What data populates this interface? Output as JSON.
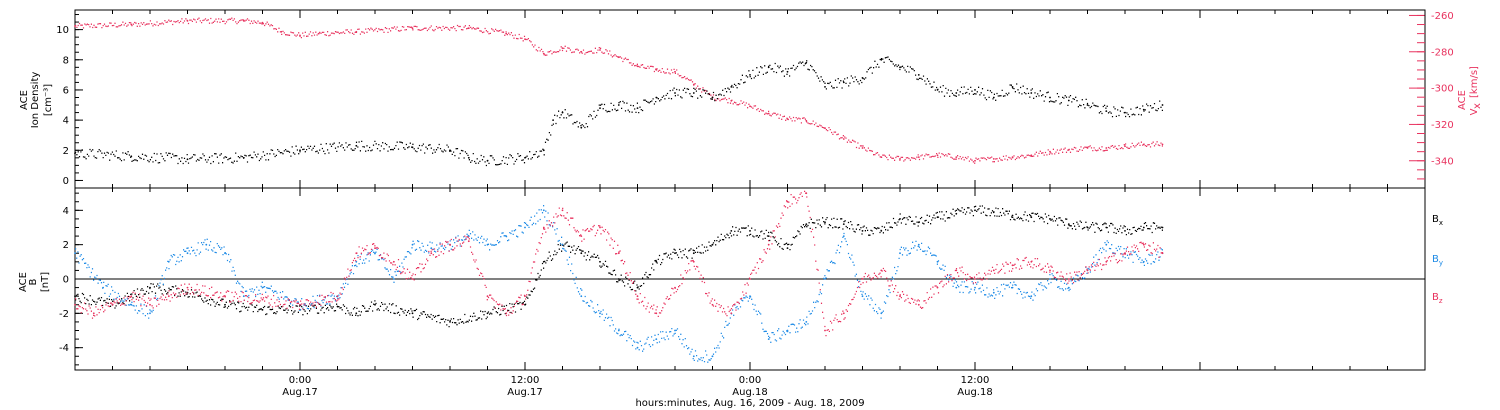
{
  "colors": {
    "black": "#000000",
    "pink": "#e8325e",
    "blue": "#1f8be6"
  },
  "chart_data": [
    {
      "type": "scatter",
      "panel": "top",
      "ylabel_left": [
        "ACE",
        "Ion Density",
        "[cm⁻³]"
      ],
      "ylabel_right": [
        "ACE",
        "V",
        "x",
        "[km/s]"
      ],
      "xlim_hours": [
        0,
        72
      ],
      "ylim_left": [
        -0.5,
        11.3
      ],
      "ylim_right": [
        -355,
        -257
      ],
      "yticks_left": [
        "0",
        "2",
        "4",
        "6",
        "8",
        "10"
      ],
      "yticks_right": [
        "-260",
        "-280",
        "-300",
        "-320",
        "-340"
      ],
      "series": [
        {
          "axis": "left",
          "color": "#000000",
          "points": [
            [
              0,
              1.8
            ],
            [
              3,
              1.6
            ],
            [
              6,
              1.4
            ],
            [
              9,
              1.5
            ],
            [
              12,
              2.0
            ],
            [
              15,
              2.3
            ],
            [
              18,
              2.2
            ],
            [
              20,
              2.0
            ],
            [
              21,
              1.5
            ],
            [
              22,
              1.3
            ],
            [
              24,
              1.5
            ],
            [
              25,
              2.0
            ],
            [
              25.5,
              4.0
            ],
            [
              26,
              4.5
            ],
            [
              27,
              3.5
            ],
            [
              28,
              4.8
            ],
            [
              29,
              5.0
            ],
            [
              30,
              4.8
            ],
            [
              31,
              5.5
            ],
            [
              32,
              5.8
            ],
            [
              33,
              5.8
            ],
            [
              34,
              5.5
            ],
            [
              35,
              6.2
            ],
            [
              36,
              7.0
            ],
            [
              37,
              7.5
            ],
            [
              38,
              7.2
            ],
            [
              39,
              7.8
            ],
            [
              40,
              6.2
            ],
            [
              41,
              6.5
            ],
            [
              42,
              6.8
            ],
            [
              43,
              8.0
            ],
            [
              44,
              7.5
            ],
            [
              45,
              7.0
            ],
            [
              46,
              6.0
            ],
            [
              47,
              5.8
            ],
            [
              48,
              6.0
            ],
            [
              49,
              5.5
            ],
            [
              50,
              6.2
            ],
            [
              51,
              5.8
            ],
            [
              52,
              5.5
            ],
            [
              53,
              5.3
            ],
            [
              54,
              5.0
            ],
            [
              55,
              4.6
            ],
            [
              56,
              4.5
            ],
            [
              57,
              4.7
            ],
            [
              58,
              5.0
            ]
          ]
        },
        {
          "axis": "right",
          "color": "#e8325e",
          "points": [
            [
              0,
              -266
            ],
            [
              3,
              -265
            ],
            [
              6,
              -263
            ],
            [
              9,
              -263
            ],
            [
              10,
              -264
            ],
            [
              11,
              -269
            ],
            [
              12,
              -271
            ],
            [
              13,
              -270
            ],
            [
              15,
              -269
            ],
            [
              18,
              -267
            ],
            [
              21,
              -267
            ],
            [
              23,
              -270
            ],
            [
              24,
              -273
            ],
            [
              25,
              -281
            ],
            [
              26,
              -278
            ],
            [
              27,
              -280
            ],
            [
              28,
              -279
            ],
            [
              29,
              -283
            ],
            [
              30,
              -288
            ],
            [
              31,
              -290
            ],
            [
              32,
              -291
            ],
            [
              33,
              -298
            ],
            [
              34,
              -305
            ],
            [
              35,
              -307
            ],
            [
              36,
              -310
            ],
            [
              37,
              -314
            ],
            [
              38,
              -317
            ],
            [
              39,
              -318
            ],
            [
              40,
              -322
            ],
            [
              41,
              -328
            ],
            [
              42,
              -333
            ],
            [
              43,
              -338
            ],
            [
              44,
              -339
            ],
            [
              45,
              -338
            ],
            [
              46,
              -337
            ],
            [
              47,
              -338
            ],
            [
              48,
              -340
            ],
            [
              49,
              -339
            ],
            [
              50,
              -338
            ],
            [
              51,
              -337
            ],
            [
              52,
              -335
            ],
            [
              53,
              -334
            ],
            [
              54,
              -333
            ],
            [
              55,
              -333
            ],
            [
              56,
              -332
            ],
            [
              57,
              -331
            ],
            [
              58,
              -331
            ]
          ]
        }
      ]
    },
    {
      "type": "scatter",
      "panel": "bottom",
      "ylabel_left": [
        "ACE",
        "B",
        "[nT]"
      ],
      "xlim_hours": [
        0,
        72
      ],
      "ylim": [
        -5.3,
        5.3
      ],
      "yticks": [
        "-4",
        "-2",
        "0",
        "2",
        "4"
      ],
      "xlabel": "hours:minutes, Aug. 16, 2009 - Aug. 18, 2009",
      "xtick_labels": [
        {
          "hours": 12,
          "time": "0:00",
          "date": "Aug.17"
        },
        {
          "hours": 24,
          "time": "12:00",
          "date": "Aug.17"
        },
        {
          "hours": 36,
          "time": "0:00",
          "date": "Aug.18"
        },
        {
          "hours": 48,
          "time": "12:00",
          "date": "Aug.18"
        }
      ],
      "legend": [
        {
          "name": "B",
          "sub": "x",
          "color": "#000000"
        },
        {
          "name": "B",
          "sub": "y",
          "color": "#1f8be6"
        },
        {
          "name": "B",
          "sub": "z",
          "color": "#e8325e"
        }
      ],
      "series": [
        {
          "name": "Bx",
          "color": "#000000",
          "points": [
            [
              0,
              -1.0
            ],
            [
              2,
              -1.5
            ],
            [
              4,
              -0.5
            ],
            [
              6,
              -0.8
            ],
            [
              8,
              -1.5
            ],
            [
              10,
              -1.8
            ],
            [
              12,
              -1.8
            ],
            [
              14,
              -1.6
            ],
            [
              15,
              -2.0
            ],
            [
              16,
              -1.5
            ],
            [
              18,
              -2.0
            ],
            [
              20,
              -2.5
            ],
            [
              22,
              -2.0
            ],
            [
              24,
              -1.5
            ],
            [
              25,
              1.0
            ],
            [
              26,
              2.0
            ],
            [
              27,
              1.5
            ],
            [
              28,
              1.0
            ],
            [
              29,
              0.0
            ],
            [
              30,
              -0.5
            ],
            [
              31,
              1.0
            ],
            [
              32,
              1.5
            ],
            [
              33,
              1.5
            ],
            [
              34,
              2.0
            ],
            [
              35,
              2.8
            ],
            [
              36,
              2.8
            ],
            [
              37,
              2.5
            ],
            [
              38,
              1.8
            ],
            [
              39,
              3.2
            ],
            [
              40,
              3.3
            ],
            [
              41,
              3.2
            ],
            [
              42,
              2.8
            ],
            [
              43,
              2.8
            ],
            [
              44,
              3.5
            ],
            [
              45,
              3.3
            ],
            [
              46,
              3.6
            ],
            [
              47,
              3.8
            ],
            [
              48,
              4.0
            ],
            [
              49,
              3.9
            ],
            [
              50,
              3.7
            ],
            [
              51,
              3.6
            ],
            [
              52,
              3.5
            ],
            [
              53,
              3.2
            ],
            [
              54,
              3.0
            ],
            [
              55,
              3.0
            ],
            [
              56,
              2.8
            ],
            [
              57,
              3.0
            ],
            [
              58,
              3.0
            ]
          ]
        },
        {
          "name": "By",
          "color": "#1f8be6",
          "points": [
            [
              0,
              1.5
            ],
            [
              1.5,
              -0.5
            ],
            [
              3,
              -1.5
            ],
            [
              4,
              -2.0
            ],
            [
              5,
              1.0
            ],
            [
              6,
              1.5
            ],
            [
              7,
              2.0
            ],
            [
              8,
              1.5
            ],
            [
              9,
              -1.0
            ],
            [
              10,
              -0.5
            ],
            [
              12,
              -1.5
            ],
            [
              14,
              -1.0
            ],
            [
              15,
              1.0
            ],
            [
              16,
              1.5
            ],
            [
              17,
              0.0
            ],
            [
              18,
              2.0
            ],
            [
              19,
              1.8
            ],
            [
              20,
              2.0
            ],
            [
              21,
              2.5
            ],
            [
              22,
              2.0
            ],
            [
              23,
              2.5
            ],
            [
              24,
              3.0
            ],
            [
              25,
              4.0
            ],
            [
              26,
              2.0
            ],
            [
              27,
              -1.0
            ],
            [
              28,
              -2.0
            ],
            [
              29,
              -3.0
            ],
            [
              30,
              -4.0
            ],
            [
              31,
              -3.5
            ],
            [
              32,
              -3.0
            ],
            [
              33,
              -4.5
            ],
            [
              34,
              -4.5
            ],
            [
              35,
              -2.0
            ],
            [
              36,
              -1.0
            ],
            [
              37,
              -3.5
            ],
            [
              38,
              -3.0
            ],
            [
              39,
              -2.5
            ],
            [
              40,
              0.0
            ],
            [
              41,
              2.5
            ],
            [
              42,
              -1.0
            ],
            [
              43,
              -2.0
            ],
            [
              44,
              1.5
            ],
            [
              45,
              2.0
            ],
            [
              46,
              1.0
            ],
            [
              47,
              -0.5
            ],
            [
              48,
              -0.5
            ],
            [
              49,
              -0.8
            ],
            [
              50,
              -0.5
            ],
            [
              51,
              -1.0
            ],
            [
              52,
              0.0
            ],
            [
              53,
              -0.5
            ],
            [
              54,
              0.5
            ],
            [
              55,
              2.0
            ],
            [
              56,
              1.5
            ],
            [
              57,
              1.0
            ],
            [
              58,
              1.5
            ]
          ]
        },
        {
          "name": "Bz",
          "color": "#e8325e",
          "points": [
            [
              0,
              -1.5
            ],
            [
              1,
              -2.0
            ],
            [
              2,
              -1.5
            ],
            [
              3,
              -1.0
            ],
            [
              4,
              -1.5
            ],
            [
              5,
              -1.0
            ],
            [
              6,
              -0.5
            ],
            [
              8,
              -1.0
            ],
            [
              10,
              -1.2
            ],
            [
              12,
              -1.5
            ],
            [
              14,
              -1.0
            ],
            [
              15,
              1.5
            ],
            [
              16,
              1.8
            ],
            [
              17,
              1.0
            ],
            [
              18,
              0.0
            ],
            [
              19,
              1.5
            ],
            [
              20,
              2.0
            ],
            [
              21,
              2.2
            ],
            [
              22,
              -1.0
            ],
            [
              23,
              -2.0
            ],
            [
              24,
              -1.0
            ],
            [
              25,
              3.0
            ],
            [
              26,
              4.0
            ],
            [
              27,
              2.5
            ],
            [
              28,
              3.0
            ],
            [
              29,
              1.5
            ],
            [
              30,
              -1.0
            ],
            [
              31,
              -2.0
            ],
            [
              32,
              -0.5
            ],
            [
              33,
              1.0
            ],
            [
              34,
              -1.5
            ],
            [
              35,
              -2.0
            ],
            [
              36,
              0.0
            ],
            [
              37,
              2.0
            ],
            [
              38,
              4.5
            ],
            [
              39,
              5.0
            ],
            [
              40,
              -3.0
            ],
            [
              41,
              -2.0
            ],
            [
              42,
              0.0
            ],
            [
              43,
              0.5
            ],
            [
              44,
              -1.0
            ],
            [
              45,
              -1.5
            ],
            [
              46,
              -0.5
            ],
            [
              47,
              0.5
            ],
            [
              48,
              0.0
            ],
            [
              49,
              0.5
            ],
            [
              50,
              0.8
            ],
            [
              51,
              1.0
            ],
            [
              52,
              0.5
            ],
            [
              53,
              0.0
            ],
            [
              54,
              0.5
            ],
            [
              55,
              1.0
            ],
            [
              56,
              1.5
            ],
            [
              57,
              2.0
            ],
            [
              58,
              1.5
            ]
          ]
        }
      ]
    }
  ]
}
